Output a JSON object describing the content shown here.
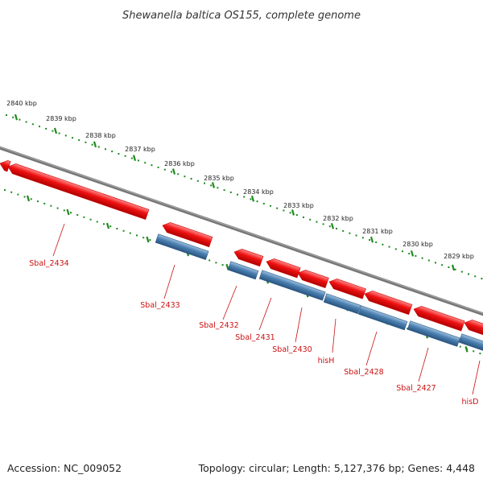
{
  "title": "Shewanella baltica OS155, complete genome",
  "footer": {
    "accession": "Accession: NC_009052",
    "summary": "Topology: circular; Length: 5,127,376 bp; Genes: 4,448"
  },
  "ticks": [
    "2840 kbp",
    "2839 kbp",
    "2838 kbp",
    "2837 kbp",
    "2836 kbp",
    "2835 kbp",
    "2834 kbp",
    "2833 kbp",
    "2832 kbp",
    "2831 kbp",
    "2830 kbp",
    "2829 kbp"
  ],
  "genes": [
    "Sbal_2434",
    "Sbal_2433",
    "Sbal_2432",
    "Sbal_2431",
    "Sbal_2430",
    "hisH",
    "Sbal_2428",
    "Sbal_2427",
    "hisD"
  ],
  "colors": {
    "cds": "#ee1111",
    "gene": "#4a7fb0",
    "backbone": "#808080",
    "tick": "#1e8a1e",
    "label": "#cc1111"
  }
}
